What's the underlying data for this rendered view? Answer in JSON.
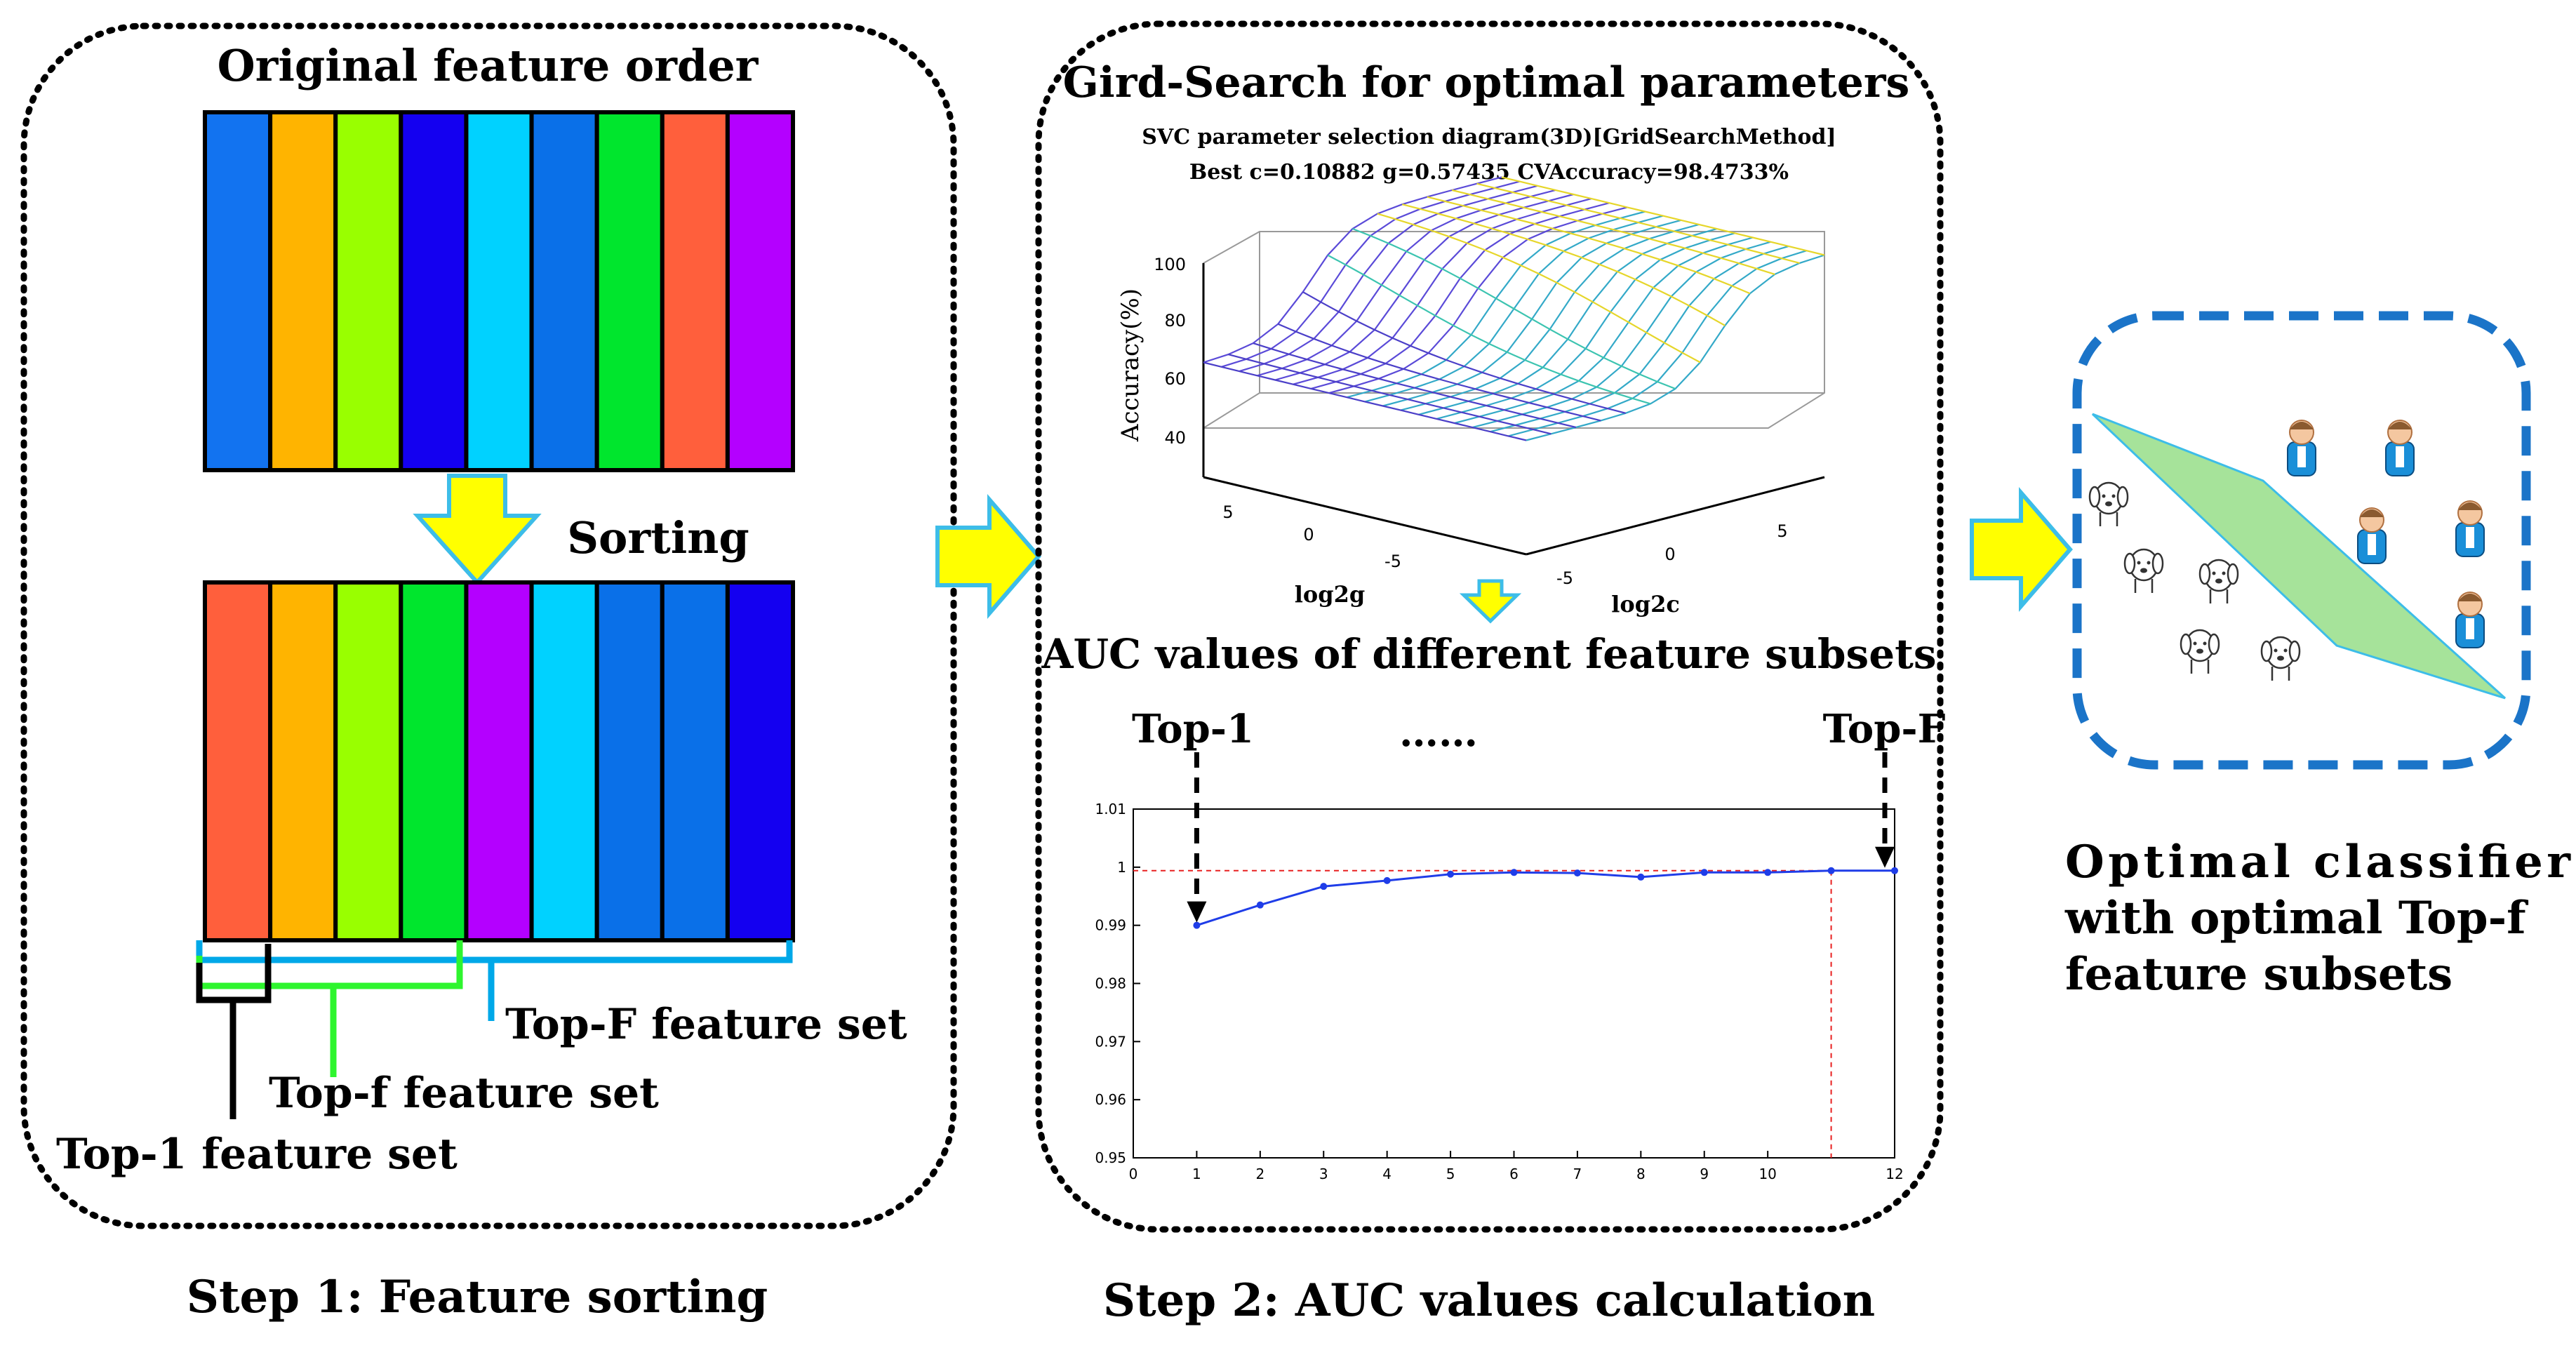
{
  "step1": {
    "title": "Original feature order",
    "sorting_label": "Sorting",
    "caption": "Step 1: Feature sorting",
    "original_colors": [
      "#1273f0",
      "#ffb400",
      "#99ff00",
      "#1400f0",
      "#00d2ff",
      "#0a70e8",
      "#00e62d",
      "#ff5f3c",
      "#b400ff"
    ],
    "sorted_colors": [
      "#ff5f3c",
      "#ffb400",
      "#99ff00",
      "#00e62d",
      "#b400ff",
      "#00d2ff",
      "#0a70e8",
      "#0a70e8",
      "#1400f0"
    ],
    "sets": {
      "top_F": "Top-F feature set",
      "top_f": "Top-f feature set",
      "top_1": "Top-1 feature set"
    }
  },
  "step2": {
    "title": "Gird-Search for optimal parameters",
    "caption": "Step 2: AUC values calculation",
    "surface": {
      "title_line1": "SVC parameter selection diagram(3D)[GridSearchMethod]",
      "title_line2": "Best c=0.10882 g=0.57435 CVAccuracy=98.4733%",
      "zlabel": "Accuracy(%)",
      "xlabel": "log2g",
      "ylabel": "log2c",
      "z_ticks": [
        "100",
        "80",
        "60",
        "40"
      ],
      "g_ticks": [
        "5",
        "0",
        "-5"
      ],
      "c_ticks": [
        "5",
        "0",
        "-5"
      ]
    },
    "auc": {
      "title": "AUC values of different feature subsets",
      "left_label": "Top-1",
      "right_label": "Top-F",
      "dots": "……"
    }
  },
  "step3": {
    "caption_lines": [
      "Optimal classifier",
      "with optimal Top-f",
      "feature subsets"
    ]
  },
  "colors": {
    "arrow_fill": "#ffff00",
    "arrow_stroke": "#3dbde8",
    "classifier_border": "#1b74c8",
    "plane_fill": "#a6e39a",
    "curve": "#1f3de8",
    "ref_line": "#e82020"
  },
  "chart_data": {
    "type": "line",
    "title": "AUC values of different feature subsets",
    "xlabel": "",
    "ylabel": "",
    "x": [
      1,
      2,
      3,
      4,
      5,
      6,
      7,
      8,
      9,
      10,
      11,
      12
    ],
    "values": [
      0.99,
      0.9935,
      0.9967,
      0.9977,
      0.9988,
      0.9991,
      0.999,
      0.9983,
      0.9991,
      0.9991,
      0.9994,
      0.9994
    ],
    "xlim": [
      0,
      12
    ],
    "ylim": [
      0.95,
      1.01
    ],
    "x_ticks": [
      "0",
      "1",
      "2",
      "3",
      "4",
      "5",
      "6",
      "7",
      "8",
      "9",
      "10",
      "12"
    ],
    "y_ticks": [
      "0.95",
      "0.96",
      "0.97",
      "0.98",
      "0.99",
      "1",
      "1.01"
    ],
    "reference_y": 0.9994,
    "reference_x": 11
  }
}
